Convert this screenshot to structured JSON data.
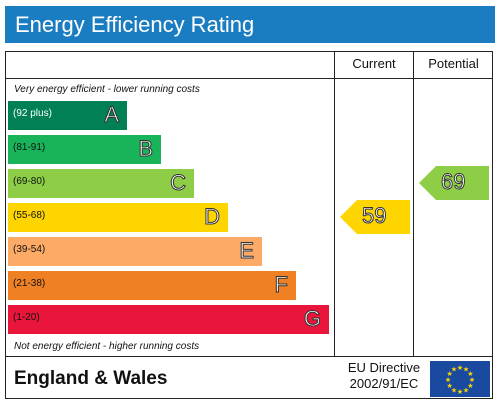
{
  "title": "Energy Efficiency Rating",
  "columns": {
    "current": "Current",
    "potential": "Potential"
  },
  "notes": {
    "top": "Very energy efficient - lower running costs",
    "bottom": "Not energy efficient - higher running costs"
  },
  "chart_data": {
    "type": "bar",
    "categories": [
      "A",
      "B",
      "C",
      "D",
      "E",
      "F",
      "G"
    ],
    "ranges": [
      "(92 plus)",
      "(81-91)",
      "(69-80)",
      "(55-68)",
      "(39-54)",
      "(21-38)",
      "(1-20)"
    ],
    "band_colors": [
      "#008054",
      "#19b459",
      "#8dce46",
      "#ffd500",
      "#fcaa65",
      "#ef8023",
      "#e9153b"
    ],
    "current": {
      "value": 59,
      "band": "D",
      "color": "#ffd500"
    },
    "potential": {
      "value": 69,
      "band": "C",
      "color": "#8dce46"
    }
  },
  "footer": {
    "region": "England & Wales",
    "directive_line1": "EU Directive",
    "directive_line2": "2002/91/EC"
  },
  "flag_icon": "eu-flag-icon"
}
